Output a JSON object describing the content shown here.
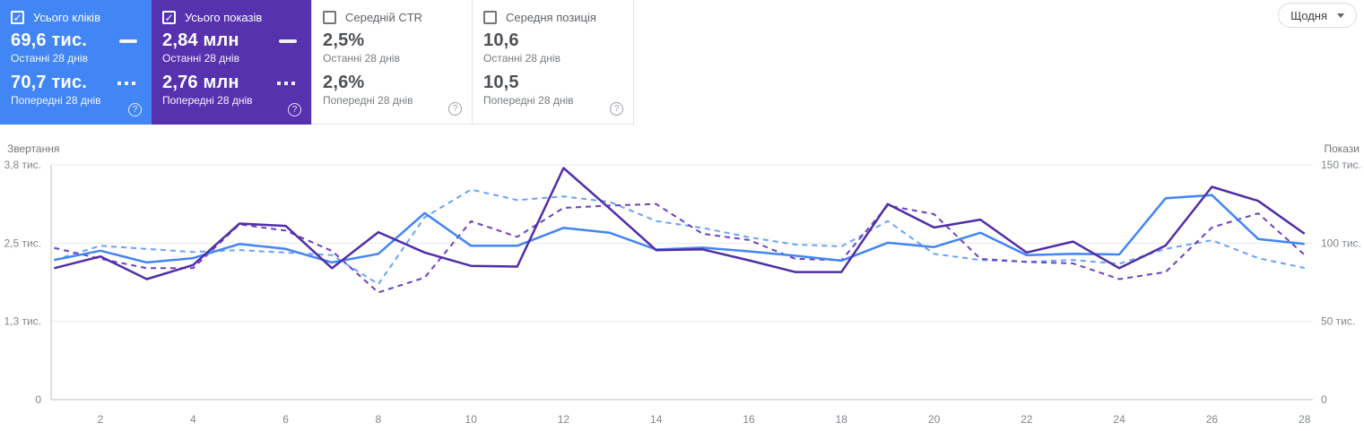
{
  "cards": [
    {
      "key": "total-clicks",
      "label": "Усього кліків",
      "checked": true,
      "color": "#4285f4",
      "value_current": "69,6 тис.",
      "caption_current": "Останні 28 днів",
      "value_previous": "70,7 тис.",
      "caption_previous": "Попередні 28 днів"
    },
    {
      "key": "total-impressions",
      "label": "Усього показів",
      "checked": true,
      "color": "#5632af",
      "value_current": "2,84 млн",
      "caption_current": "Останні 28 днів",
      "value_previous": "2,76 млн",
      "caption_previous": "Попередні 28 днів"
    },
    {
      "key": "average-ctr",
      "label": "Середній CTR",
      "checked": false,
      "value_current": "2,5%",
      "caption_current": "Останні 28 днів",
      "value_previous": "2,6%",
      "caption_previous": "Попередні 28 днів"
    },
    {
      "key": "average-position",
      "label": "Середня позиція",
      "checked": false,
      "value_current": "10,6",
      "caption_current": "Останні 28 днів",
      "value_previous": "10,5",
      "caption_previous": "Попередні 28 днів"
    }
  ],
  "period_selector": {
    "label": "Щодня"
  },
  "icons": {
    "check": "✓",
    "help": "?"
  },
  "chart_data": {
    "type": "line",
    "x_tick_labels": [
      "2",
      "4",
      "6",
      "8",
      "10",
      "12",
      "14",
      "16",
      "18",
      "20",
      "22",
      "24",
      "26",
      "28"
    ],
    "left_axis": {
      "title": "Звертання",
      "max": 3800,
      "ticks": [
        "0",
        "1,3 тис.",
        "2,5 тис.",
        "3,8 тис."
      ]
    },
    "right_axis": {
      "title": "Покази",
      "max": 150000,
      "ticks": [
        "0",
        "50 тис.",
        "100 тис.",
        "150 тис."
      ]
    },
    "grid": "horizontal",
    "series": [
      {
        "key": "clicks-previous",
        "name": "Усього кліків — Попередні 28 днів",
        "axis": "left",
        "style": "dashed",
        "color": "#69a2f8",
        "values": [
          2260,
          2490,
          2440,
          2390,
          2420,
          2380,
          2340,
          1870,
          2950,
          3400,
          3230,
          3290,
          3200,
          2890,
          2780,
          2630,
          2510,
          2480,
          2890,
          2360,
          2260,
          2230,
          2260,
          2200,
          2440,
          2580,
          2290,
          2130
        ]
      },
      {
        "key": "impressions-previous",
        "name": "Усього показів — Попередні 28 днів",
        "axis": "right",
        "style": "dashed",
        "color": "#6e40c0",
        "values": [
          97000,
          90000,
          84000,
          84000,
          112000,
          108000,
          95000,
          68500,
          78000,
          114000,
          104000,
          122500,
          124000,
          125000,
          106000,
          102000,
          90000,
          89000,
          124000,
          118500,
          90000,
          88000,
          87000,
          77000,
          81500,
          110000,
          119000,
          92500
        ]
      },
      {
        "key": "clicks-current",
        "name": "Усього кліків — Останні 28 днів",
        "axis": "left",
        "style": "solid",
        "color": "#4285f4",
        "values": [
          2260,
          2410,
          2220,
          2290,
          2520,
          2440,
          2220,
          2360,
          3020,
          2490,
          2490,
          2780,
          2700,
          2430,
          2460,
          2400,
          2330,
          2250,
          2540,
          2470,
          2700,
          2340,
          2360,
          2350,
          3260,
          3310,
          2600,
          2520
        ]
      },
      {
        "key": "impressions-current",
        "name": "Усього показів — Останні 28 днів",
        "axis": "right",
        "style": "solid",
        "color": "#512da8",
        "values": [
          84000,
          91500,
          77000,
          86000,
          112500,
          111000,
          84000,
          107000,
          94000,
          85500,
          85000,
          148000,
          122000,
          95500,
          96000,
          89000,
          81500,
          81500,
          125000,
          110000,
          115000,
          94000,
          101000,
          84000,
          98500,
          136000,
          127000,
          106000
        ]
      }
    ]
  }
}
